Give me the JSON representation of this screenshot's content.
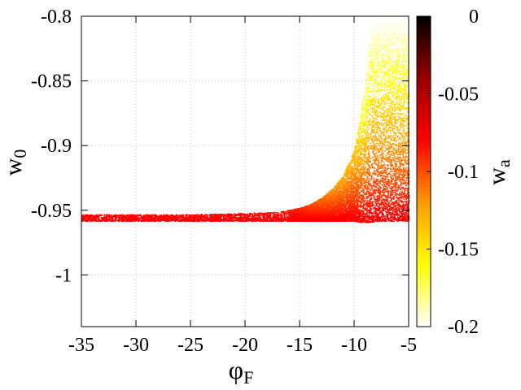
{
  "chart_data": {
    "type": "scatter",
    "title": "",
    "xlabel": "φ",
    "xlabel_sub": "F",
    "ylabel": "w",
    "ylabel_sub": "0",
    "colorbar_label": "w",
    "colorbar_label_sub": "a",
    "xlim": [
      -35,
      -5
    ],
    "ylim": [
      -1.04,
      -0.8
    ],
    "clim": [
      -0.2,
      0
    ],
    "x_ticks": [
      -35,
      -30,
      -25,
      -20,
      -15,
      -10,
      -5
    ],
    "x_tick_labels": [
      "-35",
      "-30",
      "-25",
      "-20",
      "-15",
      "-10",
      "-5"
    ],
    "y_ticks": [
      -0.8,
      -0.85,
      -0.9,
      -0.95,
      -1
    ],
    "y_tick_labels": [
      "-0.8",
      "-0.85",
      "-0.9",
      "-0.95",
      "-1"
    ],
    "colorbar_ticks": [
      0,
      -0.05,
      -0.1,
      -0.15,
      -0.2
    ],
    "colorbar_tick_labels": [
      "0",
      "-0.05",
      "-0.1",
      "-0.15",
      "-0.2"
    ],
    "colormap": [
      "#ffffff",
      "#ffff00",
      "#ff9900",
      "#ff0000",
      "#990000",
      "#000000"
    ],
    "grid": true,
    "series": [
      {
        "x": [
          -35,
          -30,
          -25,
          -20,
          -17,
          -15,
          -14,
          -13,
          -12,
          -11,
          -10,
          -9.5,
          -9,
          -8.5,
          -8,
          -7,
          -6,
          -5
        ],
        "y_upper": [
          -0.953,
          -0.953,
          -0.953,
          -0.952,
          -0.951,
          -0.948,
          -0.945,
          -0.94,
          -0.933,
          -0.922,
          -0.902,
          -0.88,
          -0.847,
          -0.8,
          -0.8,
          -0.8,
          -0.8,
          -0.8
        ],
        "y_lower": [
          -0.958,
          -0.958,
          -0.958,
          -0.958,
          -0.958,
          -0.958,
          -0.958,
          -0.958,
          -0.958,
          -0.958,
          -0.958,
          -0.959,
          -0.959,
          -0.959,
          -0.958,
          -0.958,
          -0.958,
          -0.958
        ],
        "wa_upper_edge": [
          -0.08,
          -0.08,
          -0.08,
          -0.08,
          -0.085,
          -0.09,
          -0.1,
          -0.11,
          -0.12,
          -0.13,
          -0.14,
          -0.16,
          -0.19,
          -0.2,
          -0.2,
          -0.2,
          -0.2,
          -0.2
        ],
        "wa_lower_edge": -0.075
      }
    ]
  }
}
